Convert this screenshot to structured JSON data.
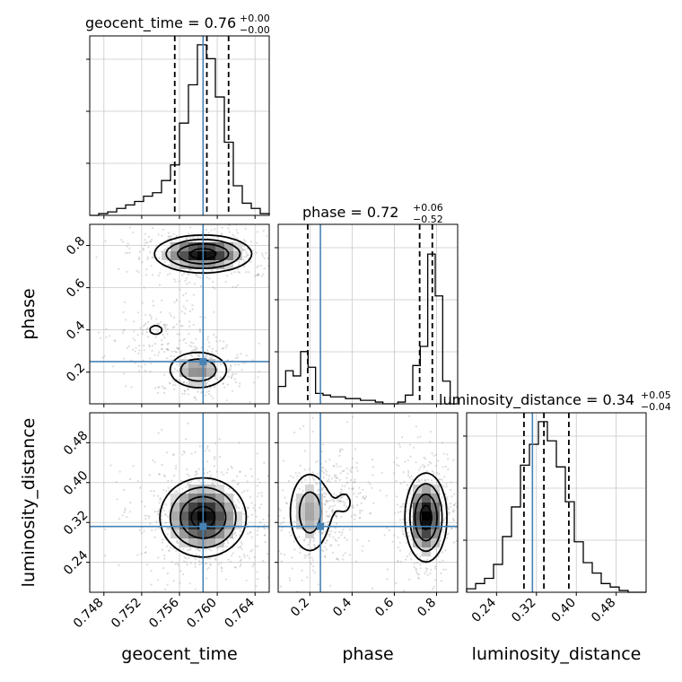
{
  "chart_data": {
    "type": "corner",
    "parameters": [
      "geocent_time",
      "phase",
      "luminosity_distance"
    ],
    "titles": [
      {
        "param": "geocent_time",
        "label": "geocent_time",
        "median": "0.76",
        "plus": "+0.00",
        "minus": "−0.00"
      },
      {
        "param": "phase",
        "label": "phase",
        "median": "0.72",
        "plus": "+0.06",
        "minus": "−0.52"
      },
      {
        "param": "luminosity_distance",
        "label": "luminosity_distance",
        "median": "0.34",
        "plus": "+0.05",
        "minus": "−0.04"
      }
    ],
    "axis_labels": {
      "geocent_time": "geocent_time",
      "phase": "phase",
      "luminosity_distance": "luminosity_distance"
    },
    "ranges": {
      "geocent_time": [
        0.7465,
        0.7655
      ],
      "phase": [
        0.05,
        0.9
      ],
      "luminosity_distance": [
        0.18,
        0.54
      ]
    },
    "ticks": {
      "geocent_time": [
        {
          "v": 0.748,
          "label": "0.748"
        },
        {
          "v": 0.752,
          "label": "0.752"
        },
        {
          "v": 0.756,
          "label": "0.756"
        },
        {
          "v": 0.76,
          "label": "0.760"
        },
        {
          "v": 0.764,
          "label": "0.764"
        }
      ],
      "phase": [
        {
          "v": 0.2,
          "label": "0.2"
        },
        {
          "v": 0.4,
          "label": "0.4"
        },
        {
          "v": 0.6,
          "label": "0.6"
        },
        {
          "v": 0.8,
          "label": "0.8"
        }
      ],
      "luminosity_distance": [
        {
          "v": 0.24,
          "label": "0.24"
        },
        {
          "v": 0.32,
          "label": "0.32"
        },
        {
          "v": 0.4,
          "label": "0.40"
        },
        {
          "v": 0.48,
          "label": "0.48"
        }
      ]
    },
    "truths": {
      "geocent_time": 0.7585,
      "phase": 0.25,
      "luminosity_distance": 0.312
    },
    "quantiles": {
      "geocent_time": [
        0.7555,
        0.7589,
        0.7612
      ],
      "phase": [
        0.19,
        0.72,
        0.78
      ],
      "luminosity_distance": [
        0.295,
        0.335,
        0.385
      ]
    },
    "histograms": {
      "geocent_time": [
        0.0,
        0.01,
        0.02,
        0.04,
        0.06,
        0.08,
        0.11,
        0.13,
        0.2,
        0.29,
        0.53,
        0.75,
        0.98,
        0.9,
        0.68,
        0.42,
        0.17,
        0.07,
        0.04,
        0.01
      ],
      "phase": [
        0.1,
        0.19,
        0.16,
        0.3,
        0.21,
        0.06,
        0.05,
        0.04,
        0.04,
        0.03,
        0.03,
        0.02,
        0.02,
        0.01,
        0.0,
        0.0,
        0.01,
        0.05,
        0.22,
        0.33,
        0.86,
        0.62,
        0.13,
        0.0
      ],
      "luminosity_distance": [
        0.02,
        0.05,
        0.08,
        0.16,
        0.32,
        0.49,
        0.73,
        0.85,
        0.98,
        0.87,
        0.72,
        0.52,
        0.29,
        0.17,
        0.11,
        0.05,
        0.03,
        0.01,
        0.0,
        0.0
      ]
    },
    "pairs": [
      {
        "x": "geocent_time",
        "y": "phase",
        "modes": [
          {
            "cx": 0.7585,
            "cy": 0.76,
            "sx": 0.0026,
            "sy": 0.045,
            "w": 1.0
          },
          {
            "cx": 0.758,
            "cy": 0.21,
            "sx": 0.0018,
            "sy": 0.05,
            "w": 0.55
          },
          {
            "cx": 0.7535,
            "cy": 0.4,
            "sx": 0.0018,
            "sy": 0.06,
            "w": 0.15
          }
        ]
      },
      {
        "x": "geocent_time",
        "y": "luminosity_distance",
        "modes": [
          {
            "cx": 0.7585,
            "cy": 0.33,
            "sx": 0.0023,
            "sy": 0.04,
            "w": 1.0
          }
        ]
      },
      {
        "x": "phase",
        "y": "luminosity_distance",
        "modes": [
          {
            "cx": 0.75,
            "cy": 0.33,
            "sx": 0.05,
            "sy": 0.045,
            "w": 1.0
          },
          {
            "cx": 0.2,
            "cy": 0.34,
            "sx": 0.06,
            "sy": 0.05,
            "w": 0.45
          },
          {
            "cx": 0.37,
            "cy": 0.36,
            "sx": 0.05,
            "sy": 0.035,
            "w": 0.15
          }
        ]
      }
    ],
    "grid": true,
    "colors": {
      "truth": "#4682b4",
      "contour": "#000000",
      "hist": "#000000",
      "grid": "#c8c8c8"
    }
  }
}
